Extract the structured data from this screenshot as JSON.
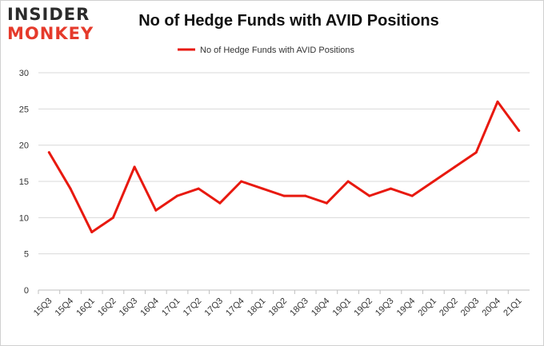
{
  "logo": {
    "line1": "INSIDER",
    "line2": "MONKEY"
  },
  "chart_data": {
    "type": "line",
    "title": "No of Hedge Funds with AVID Positions",
    "categories": [
      "15Q3",
      "15Q4",
      "16Q1",
      "16Q2",
      "16Q3",
      "16Q4",
      "17Q1",
      "17Q2",
      "17Q3",
      "17Q4",
      "18Q1",
      "18Q2",
      "18Q3",
      "18Q4",
      "19Q1",
      "19Q2",
      "19Q3",
      "19Q4",
      "20Q1",
      "20Q2",
      "20Q3",
      "20Q4",
      "21Q1"
    ],
    "series": [
      {
        "name": "No of Hedge Funds with AVID Positions",
        "values": [
          19,
          14,
          8,
          10,
          17,
          11,
          13,
          14,
          12,
          15,
          14,
          13,
          13,
          12,
          15,
          13,
          14,
          13,
          15,
          17,
          19,
          26,
          22
        ]
      }
    ],
    "ylim": [
      0,
      30
    ],
    "yticks": [
      0,
      5,
      10,
      15,
      20,
      25,
      30
    ],
    "grid": true,
    "legend": "top-center",
    "colors": {
      "line": "#e8190f",
      "grid": "#d9d9d9",
      "axis": "#bfbfbf"
    }
  }
}
